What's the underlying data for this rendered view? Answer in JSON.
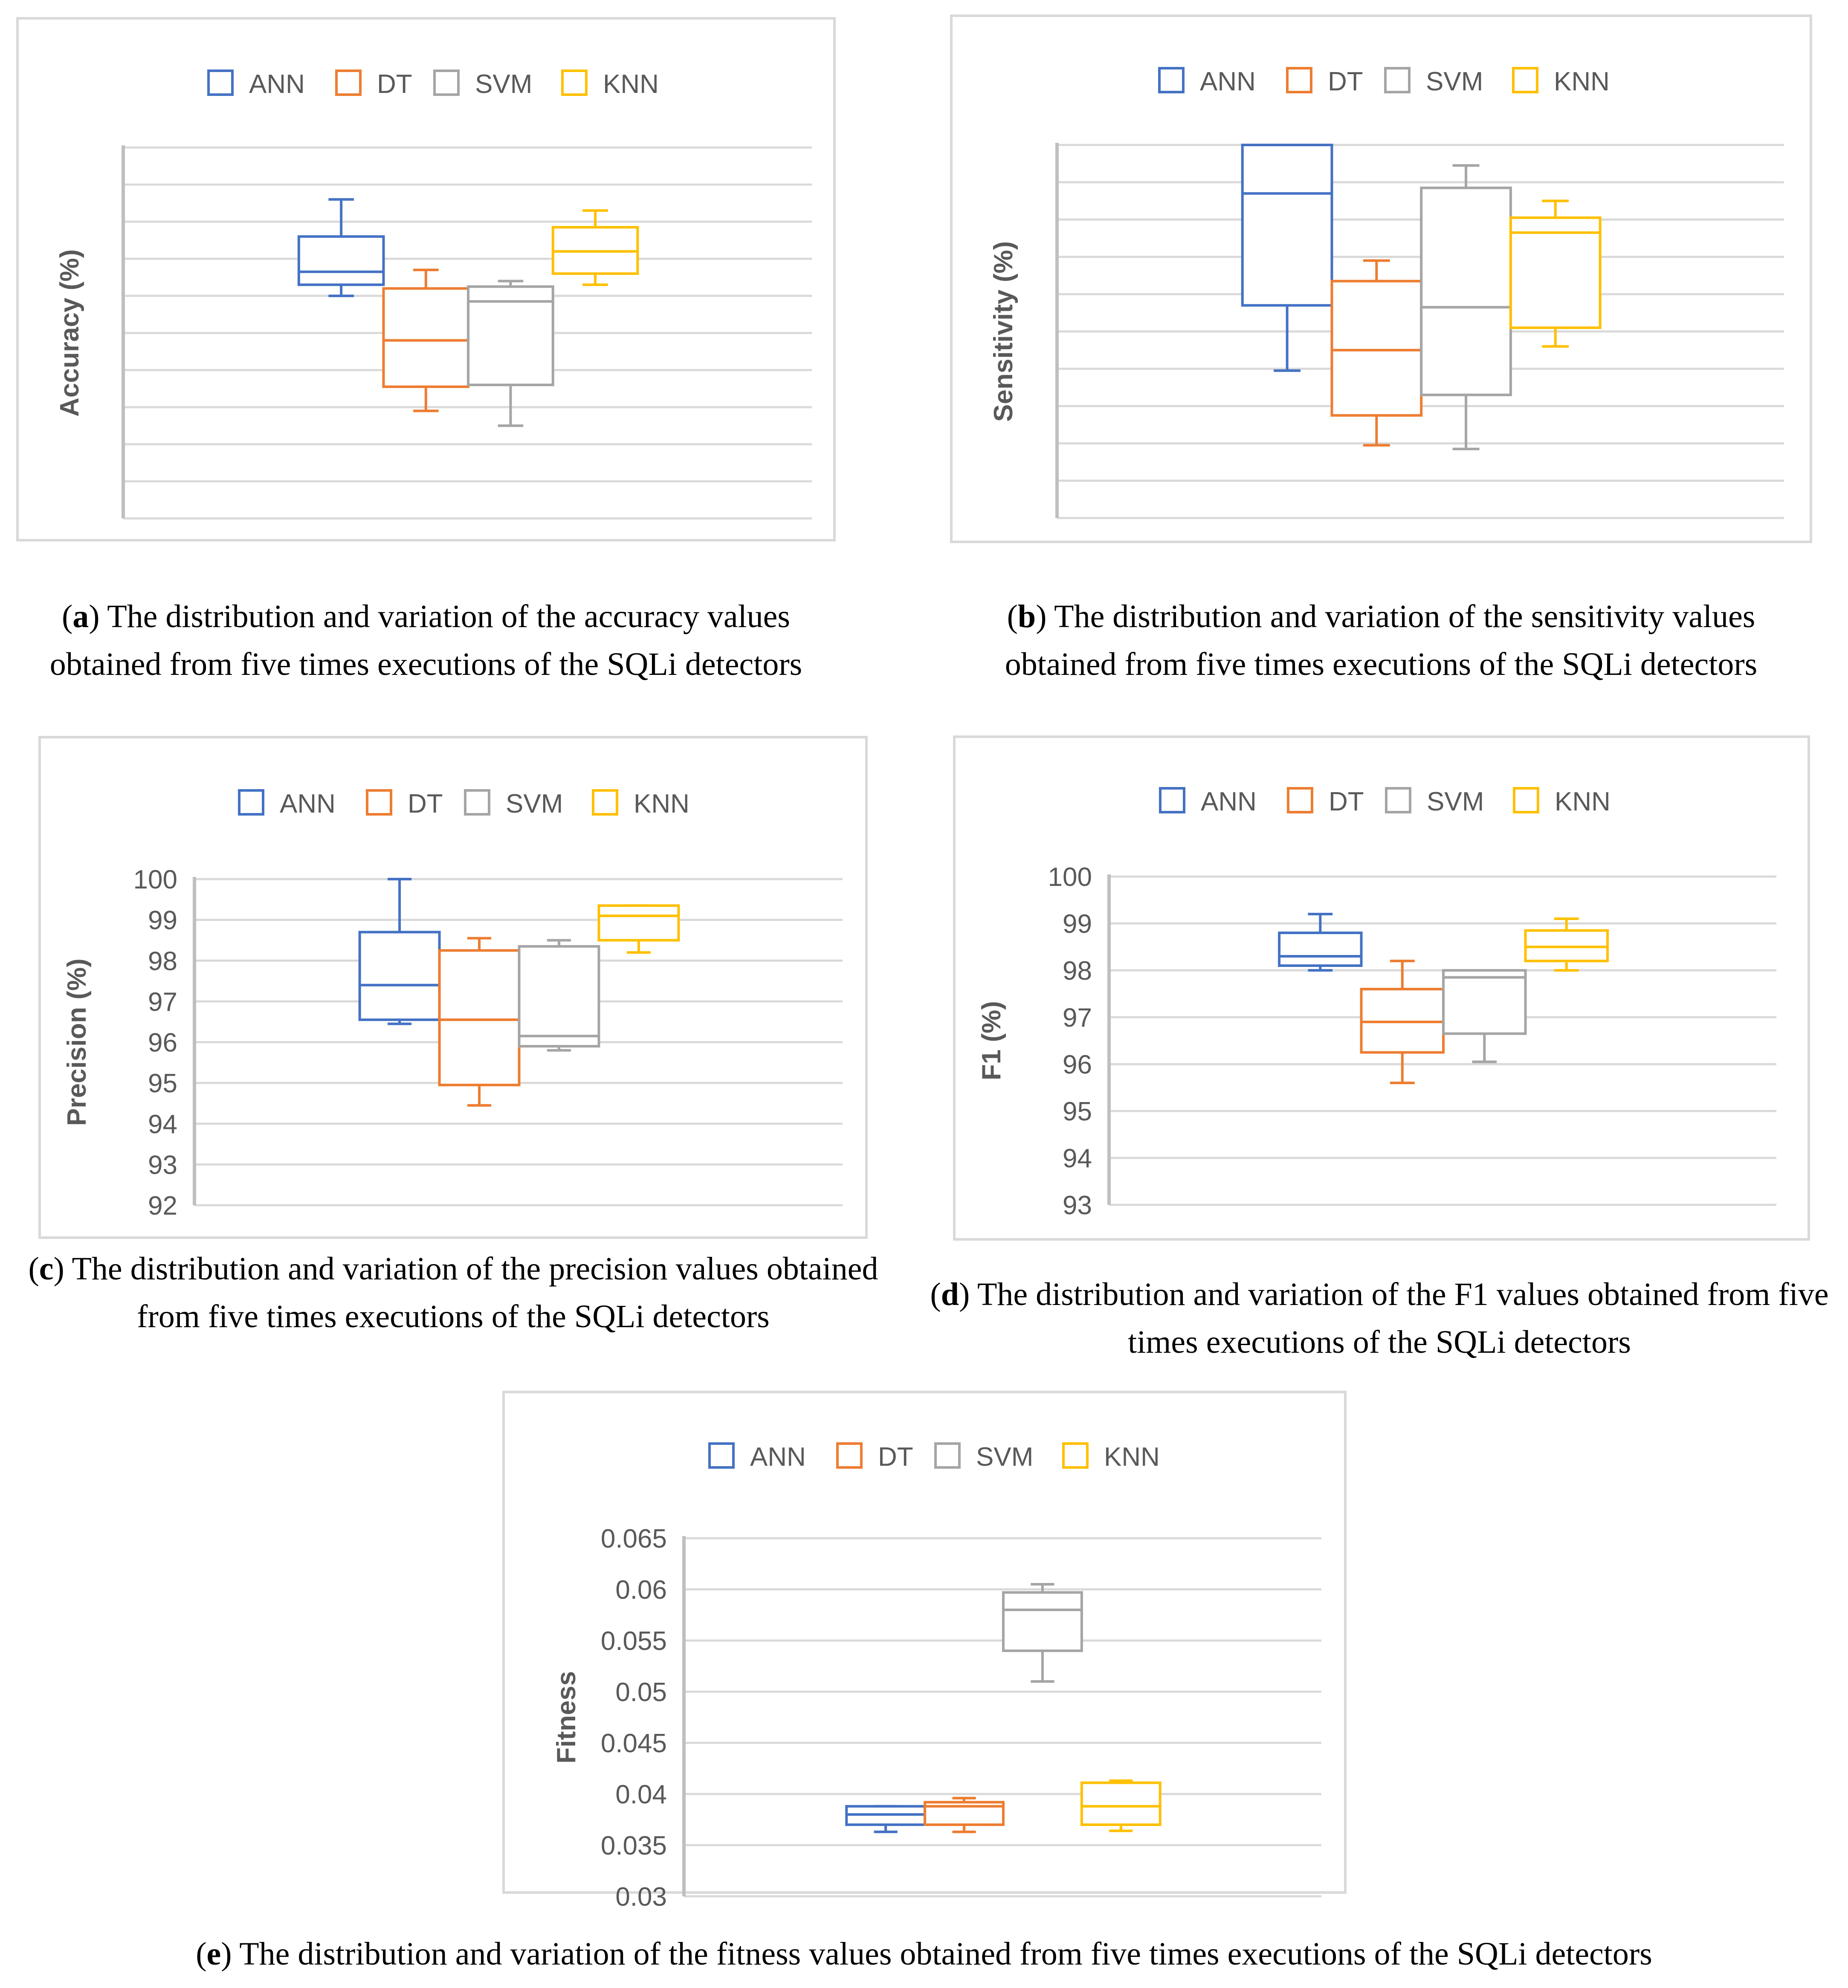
{
  "legend": [
    "ANN",
    "DT",
    "SVM",
    "KNN"
  ],
  "colors": {
    "ANN": "#4472c4",
    "DT": "#ed7d31",
    "SVM": "#a5a5a5",
    "KNN": "#ffc000",
    "grid": "#d9d9d9",
    "axis": "#bfbfbf"
  },
  "captions": {
    "a": {
      "letter": "a",
      "text": " The distribution and variation of the accuracy values obtained from five times executions of the SQLi detectors"
    },
    "b": {
      "letter": "b",
      "text": " The distribution and variation of the sensitivity values obtained from five times executions of the SQLi detectors"
    },
    "c": {
      "letter": "c",
      "text": " The distribution and variation of the precision values obtained from five times executions of the SQLi detectors"
    },
    "d": {
      "letter": "d",
      "text": " The distribution and variation of the F1 values obtained from five times executions of the SQLi detectors"
    },
    "e": {
      "letter": "e",
      "text": " The distribution and variation of the fitness values obtained from five times executions of the SQLi detectors"
    }
  },
  "chart_data": [
    {
      "id": "a",
      "type": "box",
      "ylabel": "Accuracy (%)",
      "ylim": [
        0,
        10
      ],
      "yticks": [],
      "show_tick_labels": false,
      "grid": true,
      "series": [
        {
          "name": "ANN",
          "min": 6.0,
          "q1": 6.3,
          "median": 6.65,
          "q3": 7.6,
          "max": 8.6
        },
        {
          "name": "DT",
          "min": 2.9,
          "q1": 3.55,
          "median": 4.8,
          "q3": 6.2,
          "max": 6.7
        },
        {
          "name": "SVM",
          "min": 2.5,
          "q1": 3.6,
          "median": 5.85,
          "q3": 6.25,
          "max": 6.4
        },
        {
          "name": "KNN",
          "min": 6.3,
          "q1": 6.6,
          "median": 7.2,
          "q3": 7.85,
          "max": 8.3
        }
      ]
    },
    {
      "id": "b",
      "type": "box",
      "ylabel": "Sensitivity (%)",
      "ylim": [
        0,
        10
      ],
      "yticks": [],
      "show_tick_labels": false,
      "grid": true,
      "series": [
        {
          "name": "ANN",
          "min": 3.95,
          "q1": 5.7,
          "median": 8.7,
          "q3": 10.0,
          "max": 10.0
        },
        {
          "name": "DT",
          "min": 1.95,
          "q1": 2.75,
          "median": 4.5,
          "q3": 6.35,
          "max": 6.9
        },
        {
          "name": "SVM",
          "min": 1.85,
          "q1": 3.3,
          "median": 5.65,
          "q3": 8.85,
          "max": 9.45
        },
        {
          "name": "KNN",
          "min": 4.6,
          "q1": 5.1,
          "median": 7.65,
          "q3": 8.05,
          "max": 8.5
        }
      ]
    },
    {
      "id": "c",
      "type": "box",
      "ylabel": "Precision (%)",
      "ylim": [
        92,
        100
      ],
      "yticks": [
        92,
        93,
        94,
        95,
        96,
        97,
        98,
        99,
        100
      ],
      "show_tick_labels": true,
      "grid": true,
      "series": [
        {
          "name": "ANN",
          "min": 96.45,
          "q1": 96.55,
          "median": 97.4,
          "q3": 98.7,
          "max": 100.0
        },
        {
          "name": "DT",
          "min": 94.45,
          "q1": 94.95,
          "median": 96.55,
          "q3": 98.25,
          "max": 98.55
        },
        {
          "name": "SVM",
          "min": 95.8,
          "q1": 95.9,
          "median": 96.15,
          "q3": 98.35,
          "max": 98.5
        },
        {
          "name": "KNN",
          "min": 98.2,
          "q1": 98.5,
          "median": 99.1,
          "q3": 99.35,
          "max": 99.35
        }
      ]
    },
    {
      "id": "d",
      "type": "box",
      "ylabel": "F1 (%)",
      "ylim": [
        93,
        100
      ],
      "yticks": [
        93,
        94,
        95,
        96,
        97,
        98,
        99,
        100
      ],
      "show_tick_labels": true,
      "grid": true,
      "series": [
        {
          "name": "ANN",
          "min": 98.0,
          "q1": 98.1,
          "median": 98.3,
          "q3": 98.8,
          "max": 99.2
        },
        {
          "name": "DT",
          "min": 95.6,
          "q1": 96.25,
          "median": 96.9,
          "q3": 97.6,
          "max": 98.2
        },
        {
          "name": "SVM",
          "min": 96.05,
          "q1": 96.65,
          "median": 97.85,
          "q3": 98.0,
          "max": 98.0
        },
        {
          "name": "KNN",
          "min": 98.0,
          "q1": 98.2,
          "median": 98.5,
          "q3": 98.85,
          "max": 99.1
        }
      ]
    },
    {
      "id": "e",
      "type": "box",
      "ylabel": "Fitness",
      "ylim": [
        0.03,
        0.065
      ],
      "yticks": [
        0.03,
        0.035,
        0.04,
        0.045,
        0.05,
        0.055,
        0.06,
        0.065
      ],
      "show_tick_labels": true,
      "grid": true,
      "series": [
        {
          "name": "ANN",
          "min": 0.0363,
          "q1": 0.037,
          "median": 0.038,
          "q3": 0.0388,
          "max": 0.0388
        },
        {
          "name": "DT",
          "min": 0.0363,
          "q1": 0.037,
          "median": 0.0388,
          "q3": 0.0392,
          "max": 0.0396
        },
        {
          "name": "SVM",
          "min": 0.051,
          "q1": 0.054,
          "median": 0.058,
          "q3": 0.0597,
          "max": 0.0605
        },
        {
          "name": "KNN",
          "min": 0.0364,
          "q1": 0.037,
          "median": 0.0388,
          "q3": 0.0411,
          "max": 0.0413
        }
      ]
    }
  ]
}
